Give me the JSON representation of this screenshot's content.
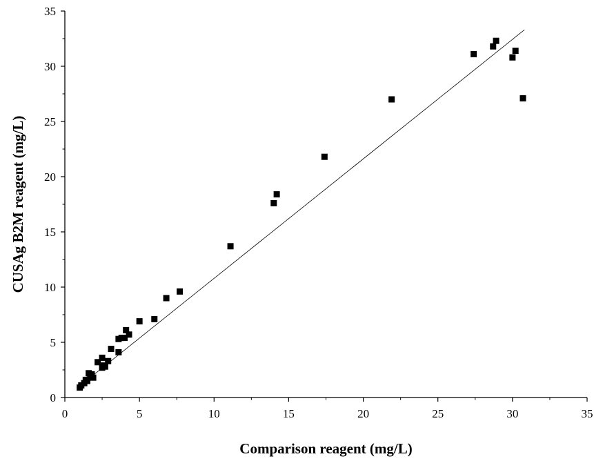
{
  "chart_data": {
    "type": "scatter",
    "title": "",
    "xlabel": "Comparison reagent (mg/L)",
    "ylabel": "CUSAg B2M reagent (mg/L)",
    "xlim": [
      0,
      35
    ],
    "ylim": [
      0,
      35
    ],
    "x_ticks": [
      0,
      5,
      10,
      15,
      20,
      25,
      30,
      35
    ],
    "y_ticks": [
      0,
      5,
      10,
      15,
      20,
      25,
      30,
      35
    ],
    "grid": false,
    "legend": "none",
    "marker": "square",
    "marker_color": "#000000",
    "series": [
      {
        "points": [
          [
            1.0,
            0.9
          ],
          [
            1.1,
            1.1
          ],
          [
            1.3,
            1.3
          ],
          [
            1.4,
            1.6
          ],
          [
            1.5,
            1.5
          ],
          [
            1.6,
            2.2
          ],
          [
            1.7,
            1.9
          ],
          [
            1.8,
            2.1
          ],
          [
            1.9,
            1.8
          ],
          [
            2.2,
            3.2
          ],
          [
            2.5,
            3.6
          ],
          [
            2.5,
            2.7
          ],
          [
            2.6,
            2.9
          ],
          [
            2.7,
            2.8
          ],
          [
            2.9,
            3.3
          ],
          [
            3.1,
            4.4
          ],
          [
            3.6,
            4.1
          ],
          [
            3.6,
            5.3
          ],
          [
            3.8,
            5.4
          ],
          [
            4.0,
            5.4
          ],
          [
            4.1,
            6.1
          ],
          [
            4.3,
            5.7
          ],
          [
            5.0,
            6.9
          ],
          [
            6.0,
            7.1
          ],
          [
            6.8,
            9.0
          ],
          [
            7.7,
            9.6
          ],
          [
            11.1,
            13.7
          ],
          [
            14.0,
            17.6
          ],
          [
            14.2,
            18.4
          ],
          [
            17.4,
            21.8
          ],
          [
            21.9,
            27.0
          ],
          [
            27.4,
            31.1
          ],
          [
            28.7,
            31.8
          ],
          [
            28.9,
            32.3
          ],
          [
            30.0,
            30.8
          ],
          [
            30.2,
            31.4
          ],
          [
            30.7,
            27.1
          ]
        ]
      }
    ],
    "regression_line": {
      "from": [
        1.0,
        1.05
      ],
      "to": [
        30.8,
        33.3
      ],
      "color": "#000000"
    }
  }
}
